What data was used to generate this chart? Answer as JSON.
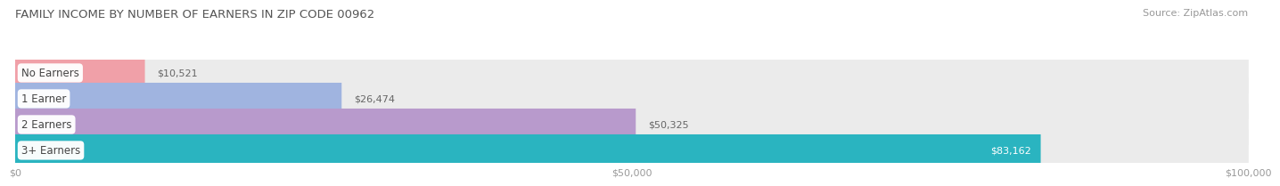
{
  "title": "FAMILY INCOME BY NUMBER OF EARNERS IN ZIP CODE 00962",
  "source": "Source: ZipAtlas.com",
  "categories": [
    "No Earners",
    "1 Earner",
    "2 Earners",
    "3+ Earners"
  ],
  "values": [
    10521,
    26474,
    50325,
    83162
  ],
  "labels": [
    "$10,521",
    "$26,474",
    "$50,325",
    "$83,162"
  ],
  "bar_colors": [
    "#f0a0a8",
    "#a0b4e0",
    "#b89acc",
    "#2ab4c0"
  ],
  "bar_bg_color": "#ebebeb",
  "xlim": [
    0,
    100000
  ],
  "xticks": [
    0,
    50000,
    100000
  ],
  "xticklabels": [
    "$0",
    "$50,000",
    "$100,000"
  ],
  "title_fontsize": 9.5,
  "source_fontsize": 8,
  "bar_label_fontsize": 8,
  "category_fontsize": 8.5,
  "xtick_fontsize": 8,
  "background_color": "#ffffff",
  "plot_bg_color": "#f5f5f5",
  "bar_height": 0.62,
  "bar_3plus_label_color": "#ffffff",
  "grid_color": "#d8d8d8",
  "label_text_color": "#666666",
  "category_text_color": "#444444"
}
